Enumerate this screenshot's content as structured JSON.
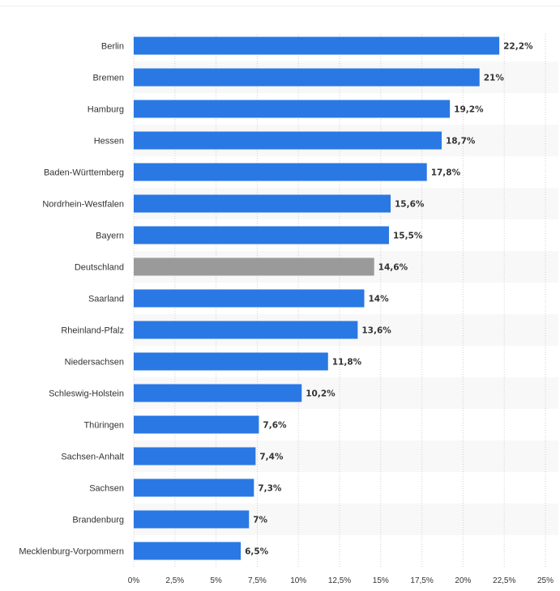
{
  "chart_data": {
    "type": "bar",
    "orientation": "horizontal",
    "categories": [
      "Berlin",
      "Bremen",
      "Hamburg",
      "Hessen",
      "Baden-Württemberg",
      "Nordrhein-Westfalen",
      "Bayern",
      "Deutschland",
      "Saarland",
      "Rheinland-Pfalz",
      "Niedersachsen",
      "Schleswig-Holstein",
      "Thüringen",
      "Sachsen-Anhalt",
      "Sachsen",
      "Brandenburg",
      "Mecklenburg-Vorpommern"
    ],
    "values": [
      22.2,
      21,
      19.2,
      18.7,
      17.8,
      15.6,
      15.5,
      14.6,
      14,
      13.6,
      11.8,
      10.2,
      7.6,
      7.4,
      7.3,
      7,
      6.5
    ],
    "value_labels": [
      "22,2%",
      "21%",
      "19,2%",
      "18,7%",
      "17,8%",
      "15,6%",
      "15,5%",
      "14,6%",
      "14%",
      "13,6%",
      "11,8%",
      "10,2%",
      "7,6%",
      "7,4%",
      "7,3%",
      "7%",
      "6,5%"
    ],
    "highlight_category": "Deutschland",
    "xlim": [
      0,
      25
    ],
    "xticks": [
      0,
      2.5,
      5,
      7.5,
      10,
      12.5,
      15,
      17.5,
      20,
      22.5,
      25
    ],
    "xtick_labels": [
      "0%",
      "2,5%",
      "5%",
      "7,5%",
      "10%",
      "12,5%",
      "15%",
      "17,5%",
      "20%",
      "22,5%",
      "25%"
    ],
    "title": "",
    "xlabel": "",
    "ylabel": "",
    "grid": "vertical dotted",
    "colors": {
      "bar": "#2a78e4",
      "highlight": "#9a9a9a",
      "alt_row": "#f8f8f8"
    }
  }
}
